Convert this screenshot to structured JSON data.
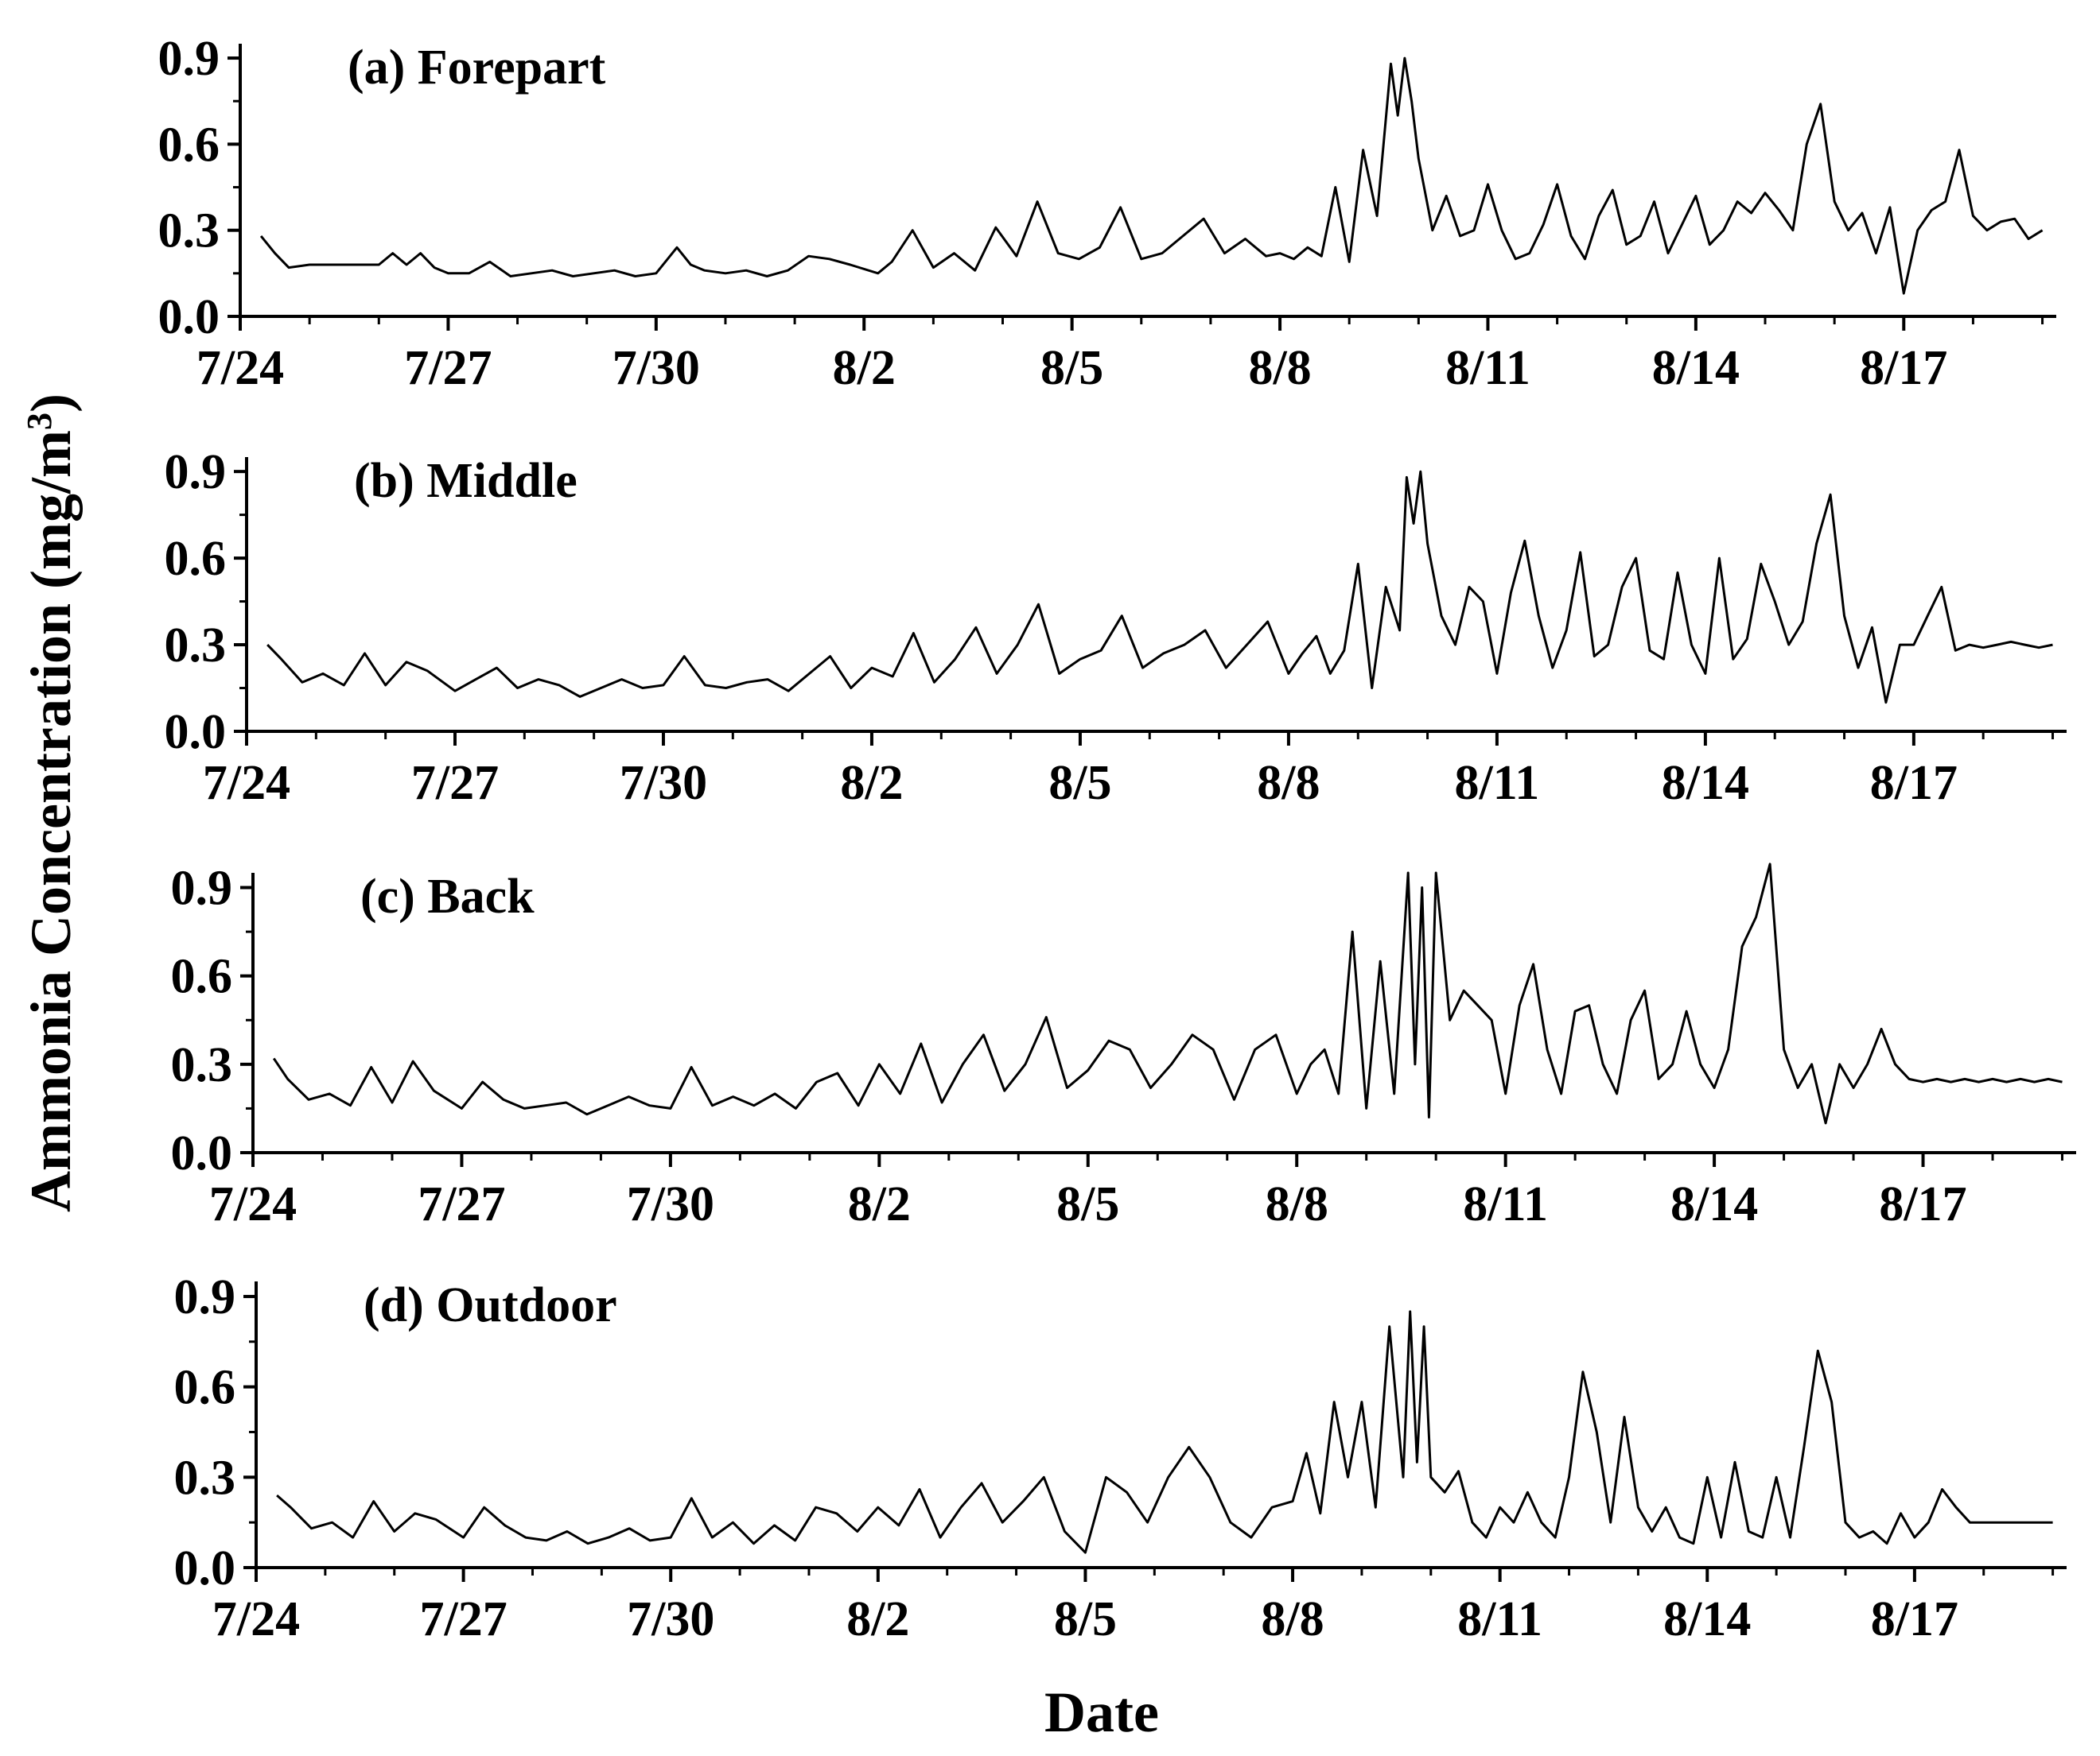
{
  "figure": {
    "ylabel": "Ammonia Concentration (mg/m",
    "ylabel_superscript": "3",
    "ylabel_close": ")",
    "xlabel": "Date"
  },
  "chart_data": [
    {
      "type": "line",
      "title": "(a) Forepart",
      "xlabel": "Date",
      "ylabel": "Ammonia Concentration (mg/m3)",
      "x_unit": "days since 7/24",
      "xlim": [
        0,
        26.2
      ],
      "ylim": [
        0,
        0.95
      ],
      "x_ticks": [
        0,
        3,
        6,
        9,
        12,
        15,
        18,
        21,
        24
      ],
      "x_tick_labels": [
        "7/24",
        "7/27",
        "7/30",
        "8/2",
        "8/5",
        "8/8",
        "8/11",
        "8/14",
        "8/17"
      ],
      "y_ticks": [
        0.0,
        0.3,
        0.6,
        0.9
      ],
      "y_tick_labels": [
        "0.0",
        "0.3",
        "0.6",
        "0.9"
      ],
      "series": [
        {
          "name": "Forepart",
          "x": [
            0.3,
            0.5,
            0.7,
            1.0,
            1.5,
            2.0,
            2.2,
            2.4,
            2.6,
            2.8,
            3.0,
            3.3,
            3.6,
            3.9,
            4.2,
            4.5,
            4.8,
            5.1,
            5.4,
            5.7,
            6.0,
            6.3,
            6.5,
            6.7,
            7.0,
            7.3,
            7.6,
            7.9,
            8.2,
            8.5,
            8.8,
            9.2,
            9.4,
            9.7,
            10.0,
            10.3,
            10.6,
            10.9,
            11.2,
            11.5,
            11.8,
            12.1,
            12.4,
            12.7,
            13.0,
            13.3,
            13.6,
            13.9,
            14.2,
            14.5,
            14.8,
            15.0,
            15.2,
            15.4,
            15.6,
            15.8,
            16.0,
            16.2,
            16.4,
            16.6,
            16.7,
            16.8,
            16.9,
            17.0,
            17.2,
            17.4,
            17.6,
            17.8,
            18.0,
            18.2,
            18.4,
            18.6,
            18.8,
            19.0,
            19.2,
            19.4,
            19.6,
            19.8,
            20.0,
            20.2,
            20.4,
            20.6,
            20.8,
            21.0,
            21.2,
            21.4,
            21.6,
            21.8,
            22.0,
            22.2,
            22.4,
            22.6,
            22.8,
            23.0,
            23.2,
            23.4,
            23.6,
            23.8,
            24.0,
            24.2,
            24.4,
            24.6,
            24.8,
            25.0,
            25.2,
            25.4,
            25.6,
            25.8,
            26.0
          ],
          "y": [
            0.28,
            0.22,
            0.17,
            0.18,
            0.18,
            0.18,
            0.22,
            0.18,
            0.22,
            0.17,
            0.15,
            0.15,
            0.19,
            0.14,
            0.15,
            0.16,
            0.14,
            0.15,
            0.16,
            0.14,
            0.15,
            0.24,
            0.18,
            0.16,
            0.15,
            0.16,
            0.14,
            0.16,
            0.21,
            0.2,
            0.18,
            0.15,
            0.19,
            0.3,
            0.17,
            0.22,
            0.16,
            0.31,
            0.21,
            0.4,
            0.22,
            0.2,
            0.24,
            0.38,
            0.2,
            0.22,
            0.28,
            0.34,
            0.22,
            0.27,
            0.21,
            0.22,
            0.2,
            0.24,
            0.21,
            0.45,
            0.19,
            0.58,
            0.35,
            0.88,
            0.7,
            0.9,
            0.75,
            0.55,
            0.3,
            0.42,
            0.28,
            0.3,
            0.46,
            0.3,
            0.2,
            0.22,
            0.32,
            0.46,
            0.28,
            0.2,
            0.35,
            0.44,
            0.25,
            0.28,
            0.4,
            0.22,
            0.32,
            0.42,
            0.25,
            0.3,
            0.4,
            0.36,
            0.43,
            0.37,
            0.3,
            0.6,
            0.74,
            0.4,
            0.3,
            0.36,
            0.22,
            0.38,
            0.08,
            0.3,
            0.37,
            0.4,
            0.58,
            0.35,
            0.3,
            0.33,
            0.34,
            0.27,
            0.3
          ]
        }
      ]
    },
    {
      "type": "line",
      "title": "(b) Middle",
      "xlabel": "Date",
      "ylabel": "Ammonia Concentration (mg/m3)",
      "x_unit": "days since 7/24",
      "xlim": [
        0,
        26.2
      ],
      "ylim": [
        0,
        0.95
      ],
      "x_ticks": [
        0,
        3,
        6,
        9,
        12,
        15,
        18,
        21,
        24
      ],
      "x_tick_labels": [
        "7/24",
        "7/27",
        "7/30",
        "8/2",
        "8/5",
        "8/8",
        "8/11",
        "8/14",
        "8/17"
      ],
      "y_ticks": [
        0.0,
        0.3,
        0.6,
        0.9
      ],
      "y_tick_labels": [
        "0.0",
        "0.3",
        "0.6",
        "0.9"
      ],
      "series": [
        {
          "name": "Middle",
          "x": [
            0.3,
            0.5,
            0.8,
            1.1,
            1.4,
            1.7,
            2.0,
            2.3,
            2.6,
            3.0,
            3.3,
            3.6,
            3.9,
            4.2,
            4.5,
            4.8,
            5.1,
            5.4,
            5.7,
            6.0,
            6.3,
            6.6,
            6.9,
            7.2,
            7.5,
            7.8,
            8.1,
            8.4,
            8.7,
            9.0,
            9.3,
            9.6,
            9.9,
            10.2,
            10.5,
            10.8,
            11.1,
            11.4,
            11.7,
            12.0,
            12.3,
            12.6,
            12.9,
            13.2,
            13.5,
            13.8,
            14.1,
            14.4,
            14.7,
            15.0,
            15.2,
            15.4,
            15.6,
            15.8,
            16.0,
            16.2,
            16.4,
            16.6,
            16.7,
            16.8,
            16.9,
            17.0,
            17.2,
            17.4,
            17.6,
            17.8,
            18.0,
            18.2,
            18.4,
            18.6,
            18.8,
            19.0,
            19.2,
            19.4,
            19.6,
            19.8,
            20.0,
            20.2,
            20.4,
            20.6,
            20.8,
            21.0,
            21.2,
            21.4,
            21.6,
            21.8,
            22.0,
            22.2,
            22.4,
            22.6,
            22.8,
            23.0,
            23.2,
            23.4,
            23.6,
            23.8,
            24.0,
            24.2,
            24.4,
            24.6,
            24.8,
            25.0,
            25.2,
            25.4,
            25.6,
            25.8,
            26.0
          ],
          "y": [
            0.3,
            0.25,
            0.17,
            0.2,
            0.16,
            0.27,
            0.16,
            0.24,
            0.21,
            0.14,
            0.18,
            0.22,
            0.15,
            0.18,
            0.16,
            0.12,
            0.15,
            0.18,
            0.15,
            0.16,
            0.26,
            0.16,
            0.15,
            0.17,
            0.18,
            0.14,
            0.2,
            0.26,
            0.15,
            0.22,
            0.19,
            0.34,
            0.17,
            0.25,
            0.36,
            0.2,
            0.3,
            0.44,
            0.2,
            0.25,
            0.28,
            0.4,
            0.22,
            0.27,
            0.3,
            0.35,
            0.22,
            0.3,
            0.38,
            0.2,
            0.27,
            0.33,
            0.2,
            0.28,
            0.58,
            0.15,
            0.5,
            0.35,
            0.88,
            0.72,
            0.9,
            0.65,
            0.4,
            0.3,
            0.5,
            0.45,
            0.2,
            0.48,
            0.66,
            0.4,
            0.22,
            0.35,
            0.62,
            0.26,
            0.3,
            0.5,
            0.6,
            0.28,
            0.25,
            0.55,
            0.3,
            0.2,
            0.6,
            0.25,
            0.32,
            0.58,
            0.45,
            0.3,
            0.38,
            0.65,
            0.82,
            0.4,
            0.22,
            0.36,
            0.1,
            0.3,
            0.3,
            0.4,
            0.5,
            0.28,
            0.3,
            0.29,
            0.3,
            0.31,
            0.3,
            0.29,
            0.3
          ]
        }
      ]
    },
    {
      "type": "line",
      "title": "(c) Back",
      "xlabel": "Date",
      "ylabel": "Ammonia Concentration (mg/m3)",
      "x_unit": "days since 7/24",
      "xlim": [
        0,
        26.2
      ],
      "ylim": [
        0,
        0.95
      ],
      "x_ticks": [
        0,
        3,
        6,
        9,
        12,
        15,
        18,
        21,
        24
      ],
      "x_tick_labels": [
        "7/24",
        "7/27",
        "7/30",
        "8/2",
        "8/5",
        "8/8",
        "8/11",
        "8/14",
        "8/17"
      ],
      "y_ticks": [
        0.0,
        0.3,
        0.6,
        0.9
      ],
      "y_tick_labels": [
        "0.0",
        "0.3",
        "0.6",
        "0.9"
      ],
      "series": [
        {
          "name": "Back",
          "x": [
            0.3,
            0.5,
            0.8,
            1.1,
            1.4,
            1.7,
            2.0,
            2.3,
            2.6,
            3.0,
            3.3,
            3.6,
            3.9,
            4.2,
            4.5,
            4.8,
            5.1,
            5.4,
            5.7,
            6.0,
            6.3,
            6.6,
            6.9,
            7.2,
            7.5,
            7.8,
            8.1,
            8.4,
            8.7,
            9.0,
            9.3,
            9.6,
            9.9,
            10.2,
            10.5,
            10.8,
            11.1,
            11.4,
            11.7,
            12.0,
            12.3,
            12.6,
            12.9,
            13.2,
            13.5,
            13.8,
            14.1,
            14.4,
            14.7,
            15.0,
            15.2,
            15.4,
            15.6,
            15.8,
            16.0,
            16.2,
            16.4,
            16.6,
            16.7,
            16.8,
            16.9,
            17.0,
            17.2,
            17.4,
            17.6,
            17.8,
            18.0,
            18.2,
            18.4,
            18.6,
            18.8,
            19.0,
            19.2,
            19.4,
            19.6,
            19.8,
            20.0,
            20.2,
            20.4,
            20.6,
            20.8,
            21.0,
            21.2,
            21.4,
            21.6,
            21.8,
            22.0,
            22.2,
            22.4,
            22.6,
            22.8,
            23.0,
            23.2,
            23.4,
            23.6,
            23.8,
            24.0,
            24.2,
            24.4,
            24.6,
            24.8,
            25.0,
            25.2,
            25.4,
            25.6,
            25.8,
            26.0
          ],
          "y": [
            0.32,
            0.25,
            0.18,
            0.2,
            0.16,
            0.29,
            0.17,
            0.31,
            0.21,
            0.15,
            0.24,
            0.18,
            0.15,
            0.16,
            0.17,
            0.13,
            0.16,
            0.19,
            0.16,
            0.15,
            0.29,
            0.16,
            0.19,
            0.16,
            0.2,
            0.15,
            0.24,
            0.27,
            0.16,
            0.3,
            0.2,
            0.37,
            0.17,
            0.3,
            0.4,
            0.21,
            0.3,
            0.46,
            0.22,
            0.28,
            0.38,
            0.35,
            0.22,
            0.3,
            0.4,
            0.35,
            0.18,
            0.35,
            0.4,
            0.2,
            0.3,
            0.35,
            0.2,
            0.75,
            0.15,
            0.65,
            0.2,
            0.95,
            0.3,
            0.9,
            0.12,
            0.95,
            0.45,
            0.55,
            0.5,
            0.45,
            0.2,
            0.5,
            0.64,
            0.35,
            0.2,
            0.48,
            0.5,
            0.3,
            0.2,
            0.45,
            0.55,
            0.25,
            0.3,
            0.48,
            0.3,
            0.22,
            0.35,
            0.7,
            0.8,
            0.98,
            0.35,
            0.22,
            0.3,
            0.1,
            0.3,
            0.22,
            0.3,
            0.42,
            0.3,
            0.25,
            0.24,
            0.25,
            0.24,
            0.25,
            0.24,
            0.25,
            0.24,
            0.25,
            0.24,
            0.25,
            0.24
          ]
        }
      ]
    },
    {
      "type": "line",
      "title": "(d) Outdoor",
      "xlabel": "Date",
      "ylabel": "Ammonia Concentration (mg/m3)",
      "x_unit": "days since 7/24",
      "xlim": [
        0,
        26.2
      ],
      "ylim": [
        0,
        0.95
      ],
      "x_ticks": [
        0,
        3,
        6,
        9,
        12,
        15,
        18,
        21,
        24
      ],
      "x_tick_labels": [
        "7/24",
        "7/27",
        "7/30",
        "8/2",
        "8/5",
        "8/8",
        "8/11",
        "8/14",
        "8/17"
      ],
      "y_ticks": [
        0.0,
        0.3,
        0.6,
        0.9
      ],
      "y_tick_labels": [
        "0.0",
        "0.3",
        "0.6",
        "0.9"
      ],
      "series": [
        {
          "name": "Outdoor",
          "x": [
            0.3,
            0.5,
            0.8,
            1.1,
            1.4,
            1.7,
            2.0,
            2.3,
            2.6,
            3.0,
            3.3,
            3.6,
            3.9,
            4.2,
            4.5,
            4.8,
            5.1,
            5.4,
            5.7,
            6.0,
            6.3,
            6.6,
            6.9,
            7.2,
            7.5,
            7.8,
            8.1,
            8.4,
            8.7,
            9.0,
            9.3,
            9.6,
            9.9,
            10.2,
            10.5,
            10.8,
            11.1,
            11.4,
            11.7,
            12.0,
            12.3,
            12.6,
            12.9,
            13.2,
            13.5,
            13.8,
            14.1,
            14.4,
            14.7,
            15.0,
            15.2,
            15.4,
            15.6,
            15.8,
            16.0,
            16.2,
            16.4,
            16.6,
            16.7,
            16.8,
            16.9,
            17.0,
            17.2,
            17.4,
            17.6,
            17.8,
            18.0,
            18.2,
            18.4,
            18.6,
            18.8,
            19.0,
            19.2,
            19.4,
            19.6,
            19.8,
            20.0,
            20.2,
            20.4,
            20.6,
            20.8,
            21.0,
            21.2,
            21.4,
            21.6,
            21.8,
            22.0,
            22.2,
            22.4,
            22.6,
            22.8,
            23.0,
            23.2,
            23.4,
            23.6,
            23.8,
            24.0,
            24.2,
            24.4,
            24.6,
            24.8,
            25.0,
            25.2,
            25.4,
            25.6,
            25.8,
            26.0
          ],
          "y": [
            0.24,
            0.2,
            0.13,
            0.15,
            0.1,
            0.22,
            0.12,
            0.18,
            0.16,
            0.1,
            0.2,
            0.14,
            0.1,
            0.09,
            0.12,
            0.08,
            0.1,
            0.13,
            0.09,
            0.1,
            0.23,
            0.1,
            0.15,
            0.08,
            0.14,
            0.09,
            0.2,
            0.18,
            0.12,
            0.2,
            0.14,
            0.26,
            0.1,
            0.2,
            0.28,
            0.15,
            0.22,
            0.3,
            0.12,
            0.05,
            0.3,
            0.25,
            0.15,
            0.3,
            0.4,
            0.3,
            0.15,
            0.1,
            0.2,
            0.22,
            0.38,
            0.18,
            0.55,
            0.3,
            0.55,
            0.2,
            0.8,
            0.3,
            0.85,
            0.35,
            0.8,
            0.3,
            0.25,
            0.32,
            0.15,
            0.1,
            0.2,
            0.15,
            0.25,
            0.15,
            0.1,
            0.3,
            0.65,
            0.45,
            0.15,
            0.5,
            0.2,
            0.12,
            0.2,
            0.1,
            0.08,
            0.3,
            0.1,
            0.35,
            0.12,
            0.1,
            0.3,
            0.1,
            0.4,
            0.72,
            0.55,
            0.15,
            0.1,
            0.12,
            0.08,
            0.18,
            0.1,
            0.15,
            0.26,
            0.2,
            0.15,
            0.15,
            0.15,
            0.15,
            0.15,
            0.15,
            0.15
          ]
        }
      ]
    }
  ]
}
